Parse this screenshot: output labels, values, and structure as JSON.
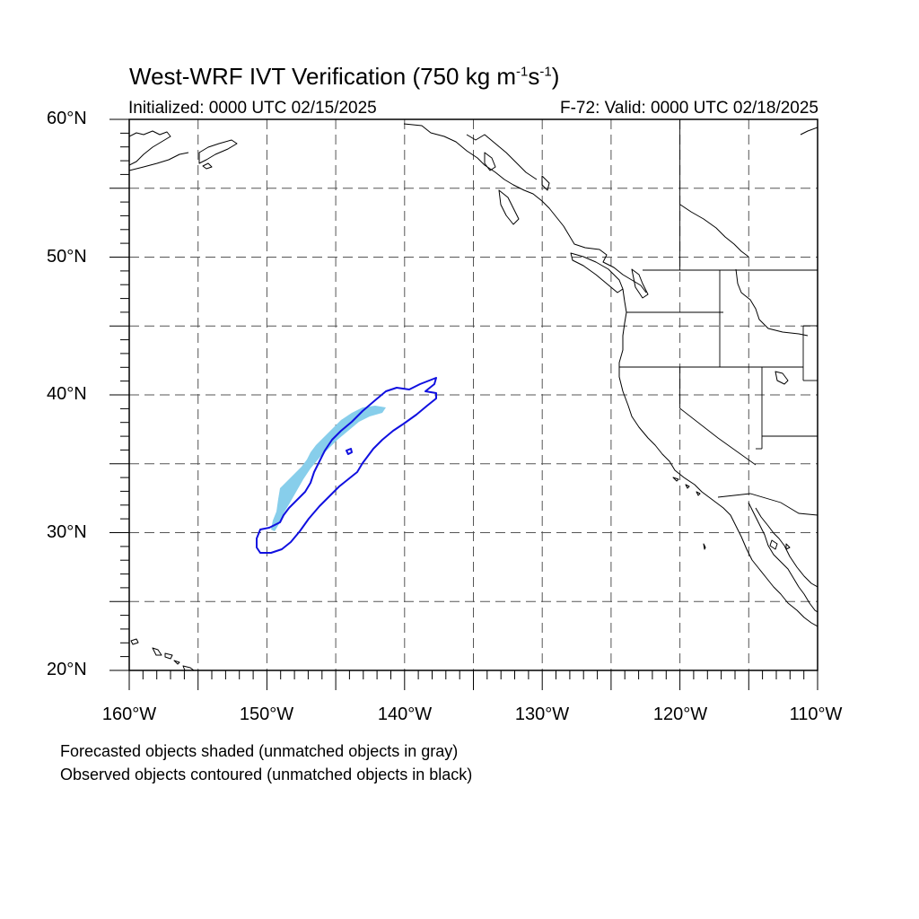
{
  "title": {
    "main": "West-WRF IVT Verification (750 kg m",
    "sup1": "-1",
    "mid": "s",
    "sup2": "-1",
    "end": ")"
  },
  "subtitle": {
    "initialized": "Initialized: 0000 UTC 02/15/2025",
    "valid": "F-72: Valid: 0000 UTC 02/18/2025"
  },
  "map": {
    "lon_range": [
      -160,
      -110
    ],
    "lat_range": [
      20,
      60
    ],
    "projection": "cylindrical equidistant",
    "lat_labels": [
      "60°N",
      "50°N",
      "40°N",
      "30°N",
      "20°N"
    ],
    "lon_labels": [
      "160°W",
      "150°W",
      "140°W",
      "130°W",
      "120°W",
      "110°W"
    ],
    "gridlines": "dashed every 5 degrees",
    "colors": {
      "forecast_fill": "#87ceeb",
      "observed_contour": "#1010e0",
      "coastline": "#000000",
      "grid": "#555555"
    }
  },
  "legend": {
    "line1": "Forecasted objects shaded (unmatched objects in gray)",
    "line2": "Observed objects contoured (unmatched objects in black)"
  }
}
